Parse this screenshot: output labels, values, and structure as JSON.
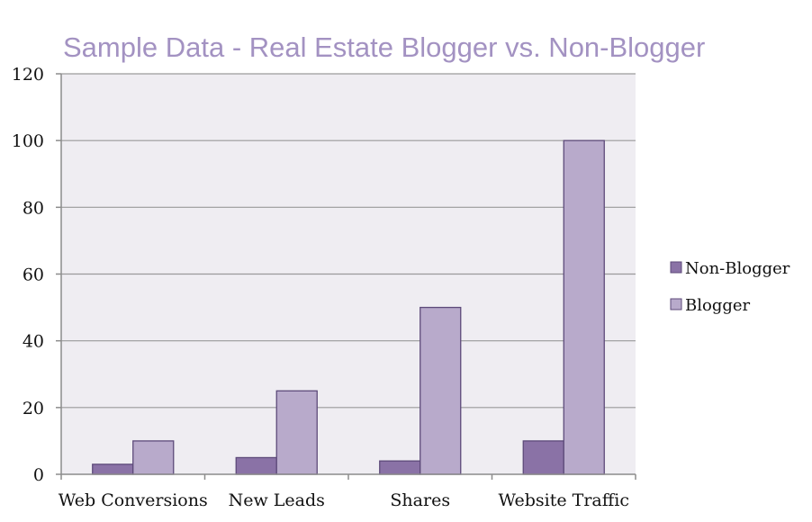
{
  "chart_data": {
    "type": "bar",
    "title": "Sample Data - Real Estate Blogger vs. Non-Blogger",
    "xlabel": "",
    "ylabel": "",
    "categories": [
      "Web Conversions",
      "New Leads",
      "Shares",
      "Website Traffic"
    ],
    "series": [
      {
        "name": "Non-Blogger",
        "values": [
          3,
          5,
          4,
          10
        ],
        "color": "#8a72a6"
      },
      {
        "name": "Blogger",
        "values": [
          10,
          25,
          50,
          100
        ],
        "color": "#b8aacb"
      }
    ],
    "ylim": [
      0,
      120
    ],
    "yticks": [
      "0",
      "20",
      "40",
      "60",
      "80",
      "100",
      "120"
    ],
    "grid": true,
    "legend_position": "right",
    "plot_background": "#efedf2",
    "gridline_color": "#9a9a9a",
    "bar_edge_color": "#5d4a7a",
    "title_color": "#a392c2"
  }
}
